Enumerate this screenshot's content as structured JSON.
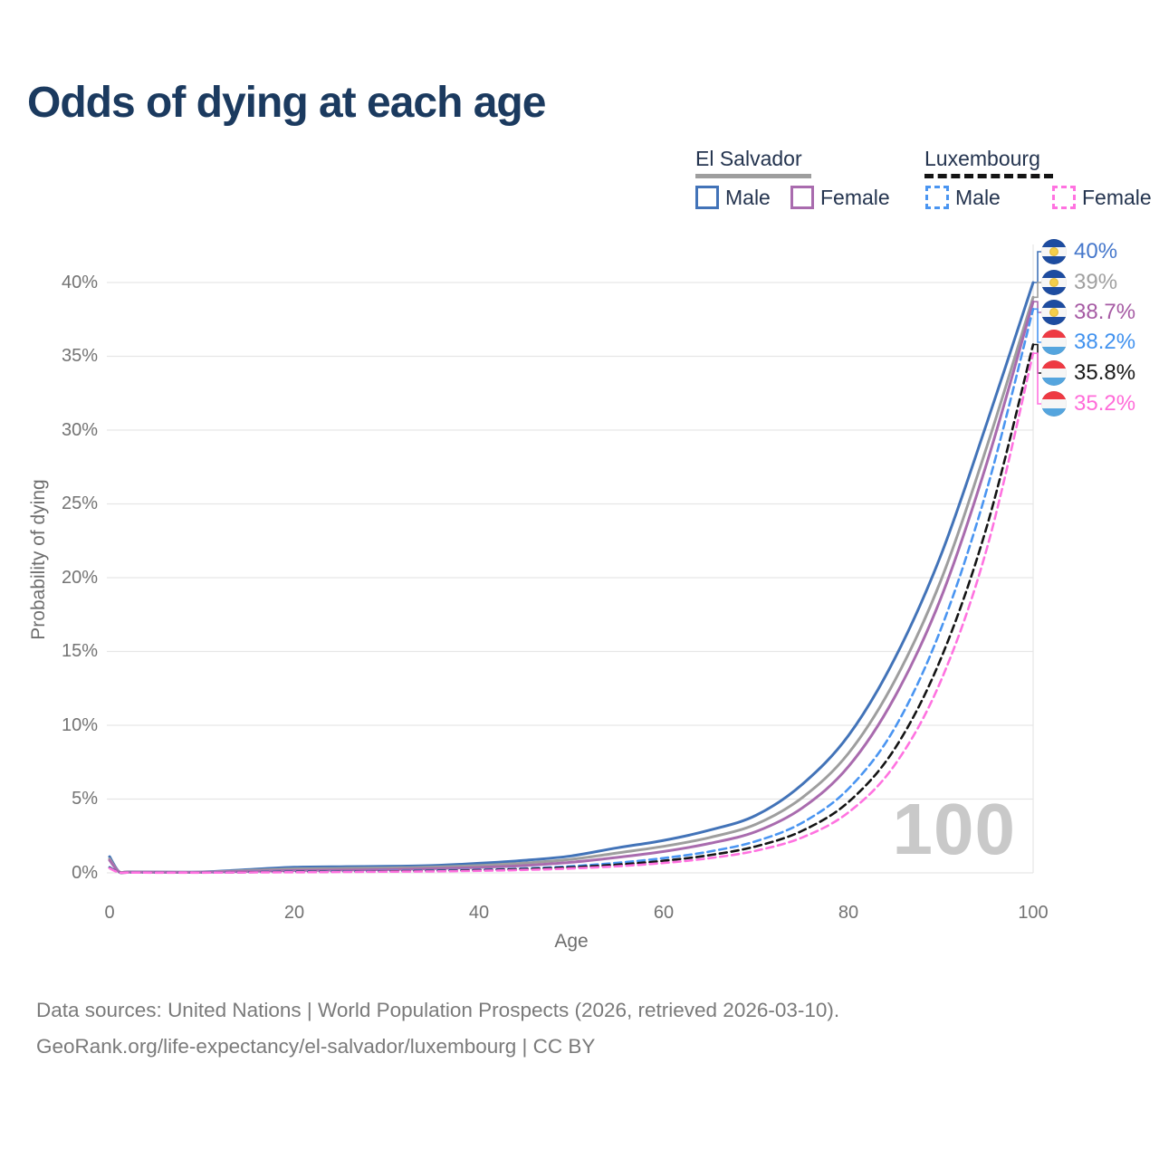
{
  "title": "Odds of dying at each age",
  "legend": {
    "el_salvador": {
      "label": "El Salvador",
      "male_label": "Male",
      "female_label": "Female"
    },
    "luxembourg": {
      "label": "Luxembourg",
      "male_label": "Male",
      "female_label": "Female"
    }
  },
  "hover_annotation": "100",
  "end_labels": [
    {
      "value": "40%",
      "color": "#4577CB",
      "flag": "el-salvador"
    },
    {
      "value": "39%",
      "color": "#A0A0A0",
      "flag": "el-salvador"
    },
    {
      "value": "38.7%",
      "color": "#A65BA4",
      "flag": "el-salvador"
    },
    {
      "value": "38.2%",
      "color": "#4192EF",
      "flag": "luxembourg"
    },
    {
      "value": "35.8%",
      "color": "#1A1A1A",
      "flag": "luxembourg"
    },
    {
      "value": "35.2%",
      "color": "#FF6CD9",
      "flag": "luxembourg"
    }
  ],
  "footer": {
    "line1": "Data sources: United Nations | World Population Prospects (2026, retrieved 2026-03-10).",
    "line2": "GeoRank.org/life-expectancy/el-salvador/luxembourg | CC BY"
  },
  "chart_data": {
    "type": "line",
    "title": "Odds of dying at each age",
    "xlabel": "Age",
    "ylabel": "Probability of dying",
    "xlim": [
      0,
      100
    ],
    "ylim_percent": [
      0,
      40
    ],
    "x_ticks": [
      "0",
      "20",
      "40",
      "60",
      "80",
      "100"
    ],
    "y_ticks": [
      "0%",
      "5%",
      "10%",
      "15%",
      "20%",
      "25%",
      "30%",
      "35%",
      "40%"
    ],
    "grid": "horizontal",
    "hover_age": 100,
    "series": [
      {
        "name": "El Salvador Male",
        "country": "El Salvador",
        "sex": "male",
        "style": "solid",
        "color": "#4273B8",
        "end_label": "40%",
        "points": [
          [
            0,
            1.1
          ],
          [
            1,
            0.1
          ],
          [
            2,
            0.07
          ],
          [
            5,
            0.06
          ],
          [
            10,
            0.06
          ],
          [
            15,
            0.22
          ],
          [
            20,
            0.38
          ],
          [
            25,
            0.42
          ],
          [
            30,
            0.44
          ],
          [
            35,
            0.5
          ],
          [
            40,
            0.65
          ],
          [
            45,
            0.85
          ],
          [
            50,
            1.15
          ],
          [
            55,
            1.7
          ],
          [
            60,
            2.2
          ],
          [
            65,
            2.9
          ],
          [
            70,
            3.9
          ],
          [
            75,
            6.0
          ],
          [
            80,
            9.3
          ],
          [
            85,
            14.5
          ],
          [
            90,
            21.5
          ],
          [
            95,
            30.5
          ],
          [
            100,
            40
          ]
        ]
      },
      {
        "name": "El Salvador Both sexes",
        "country": "El Salvador",
        "sex": "both",
        "style": "solid",
        "color": "#9E9E9E",
        "end_label": "39%",
        "points": [
          [
            0,
            0.95
          ],
          [
            1,
            0.09
          ],
          [
            2,
            0.06
          ],
          [
            5,
            0.05
          ],
          [
            10,
            0.05
          ],
          [
            15,
            0.16
          ],
          [
            20,
            0.27
          ],
          [
            25,
            0.3
          ],
          [
            30,
            0.33
          ],
          [
            35,
            0.39
          ],
          [
            40,
            0.5
          ],
          [
            45,
            0.67
          ],
          [
            50,
            0.92
          ],
          [
            55,
            1.35
          ],
          [
            60,
            1.8
          ],
          [
            65,
            2.4
          ],
          [
            70,
            3.3
          ],
          [
            75,
            5.1
          ],
          [
            80,
            8.1
          ],
          [
            85,
            13.0
          ],
          [
            90,
            19.8
          ],
          [
            95,
            28.9
          ],
          [
            100,
            39
          ]
        ]
      },
      {
        "name": "El Salvador Female",
        "country": "El Salvador",
        "sex": "female",
        "style": "solid",
        "color": "#A96BAE",
        "end_label": "38.7%",
        "points": [
          [
            0,
            0.85
          ],
          [
            1,
            0.08
          ],
          [
            2,
            0.05
          ],
          [
            5,
            0.04
          ],
          [
            10,
            0.04
          ],
          [
            15,
            0.1
          ],
          [
            20,
            0.16
          ],
          [
            25,
            0.19
          ],
          [
            30,
            0.22
          ],
          [
            35,
            0.28
          ],
          [
            40,
            0.37
          ],
          [
            45,
            0.5
          ],
          [
            50,
            0.72
          ],
          [
            55,
            1.05
          ],
          [
            60,
            1.45
          ],
          [
            65,
            2.0
          ],
          [
            70,
            2.8
          ],
          [
            75,
            4.4
          ],
          [
            80,
            7.2
          ],
          [
            85,
            11.9
          ],
          [
            90,
            18.6
          ],
          [
            95,
            27.8
          ],
          [
            100,
            38.7
          ]
        ]
      },
      {
        "name": "Luxembourg Male",
        "country": "Luxembourg",
        "sex": "male",
        "style": "dashed",
        "color": "#4A95F1",
        "end_label": "38.2%",
        "points": [
          [
            0,
            0.38
          ],
          [
            1,
            0.03
          ],
          [
            2,
            0.02
          ],
          [
            5,
            0.02
          ],
          [
            10,
            0.02
          ],
          [
            15,
            0.05
          ],
          [
            20,
            0.08
          ],
          [
            25,
            0.1
          ],
          [
            30,
            0.12
          ],
          [
            35,
            0.16
          ],
          [
            40,
            0.21
          ],
          [
            45,
            0.3
          ],
          [
            50,
            0.45
          ],
          [
            55,
            0.68
          ],
          [
            60,
            1.0
          ],
          [
            65,
            1.45
          ],
          [
            70,
            2.15
          ],
          [
            75,
            3.4
          ],
          [
            80,
            5.7
          ],
          [
            85,
            9.8
          ],
          [
            90,
            16.5
          ],
          [
            95,
            26.0
          ],
          [
            100,
            38.2
          ]
        ]
      },
      {
        "name": "Luxembourg Both sexes",
        "country": "Luxembourg",
        "sex": "both",
        "style": "dashed",
        "color": "#141414",
        "end_label": "35.8%",
        "points": [
          [
            0,
            0.35
          ],
          [
            1,
            0.028
          ],
          [
            2,
            0.02
          ],
          [
            5,
            0.018
          ],
          [
            10,
            0.018
          ],
          [
            15,
            0.04
          ],
          [
            20,
            0.06
          ],
          [
            25,
            0.08
          ],
          [
            30,
            0.1
          ],
          [
            35,
            0.13
          ],
          [
            40,
            0.18
          ],
          [
            45,
            0.26
          ],
          [
            50,
            0.38
          ],
          [
            55,
            0.56
          ],
          [
            60,
            0.82
          ],
          [
            65,
            1.2
          ],
          [
            70,
            1.8
          ],
          [
            75,
            2.85
          ],
          [
            80,
            4.8
          ],
          [
            85,
            8.4
          ],
          [
            90,
            14.5
          ],
          [
            95,
            23.5
          ],
          [
            100,
            35.8
          ]
        ]
      },
      {
        "name": "Luxembourg Female",
        "country": "Luxembourg",
        "sex": "female",
        "style": "dashed",
        "color": "#FF72E0",
        "end_label": "35.2%",
        "points": [
          [
            0,
            0.32
          ],
          [
            1,
            0.025
          ],
          [
            2,
            0.018
          ],
          [
            5,
            0.015
          ],
          [
            10,
            0.015
          ],
          [
            15,
            0.03
          ],
          [
            20,
            0.04
          ],
          [
            25,
            0.06
          ],
          [
            30,
            0.08
          ],
          [
            35,
            0.1
          ],
          [
            40,
            0.14
          ],
          [
            45,
            0.2
          ],
          [
            50,
            0.3
          ],
          [
            55,
            0.45
          ],
          [
            60,
            0.67
          ],
          [
            65,
            1.0
          ],
          [
            70,
            1.5
          ],
          [
            75,
            2.4
          ],
          [
            80,
            4.1
          ],
          [
            85,
            7.3
          ],
          [
            90,
            13.0
          ],
          [
            95,
            22.0
          ],
          [
            100,
            35.2
          ]
        ]
      }
    ]
  }
}
